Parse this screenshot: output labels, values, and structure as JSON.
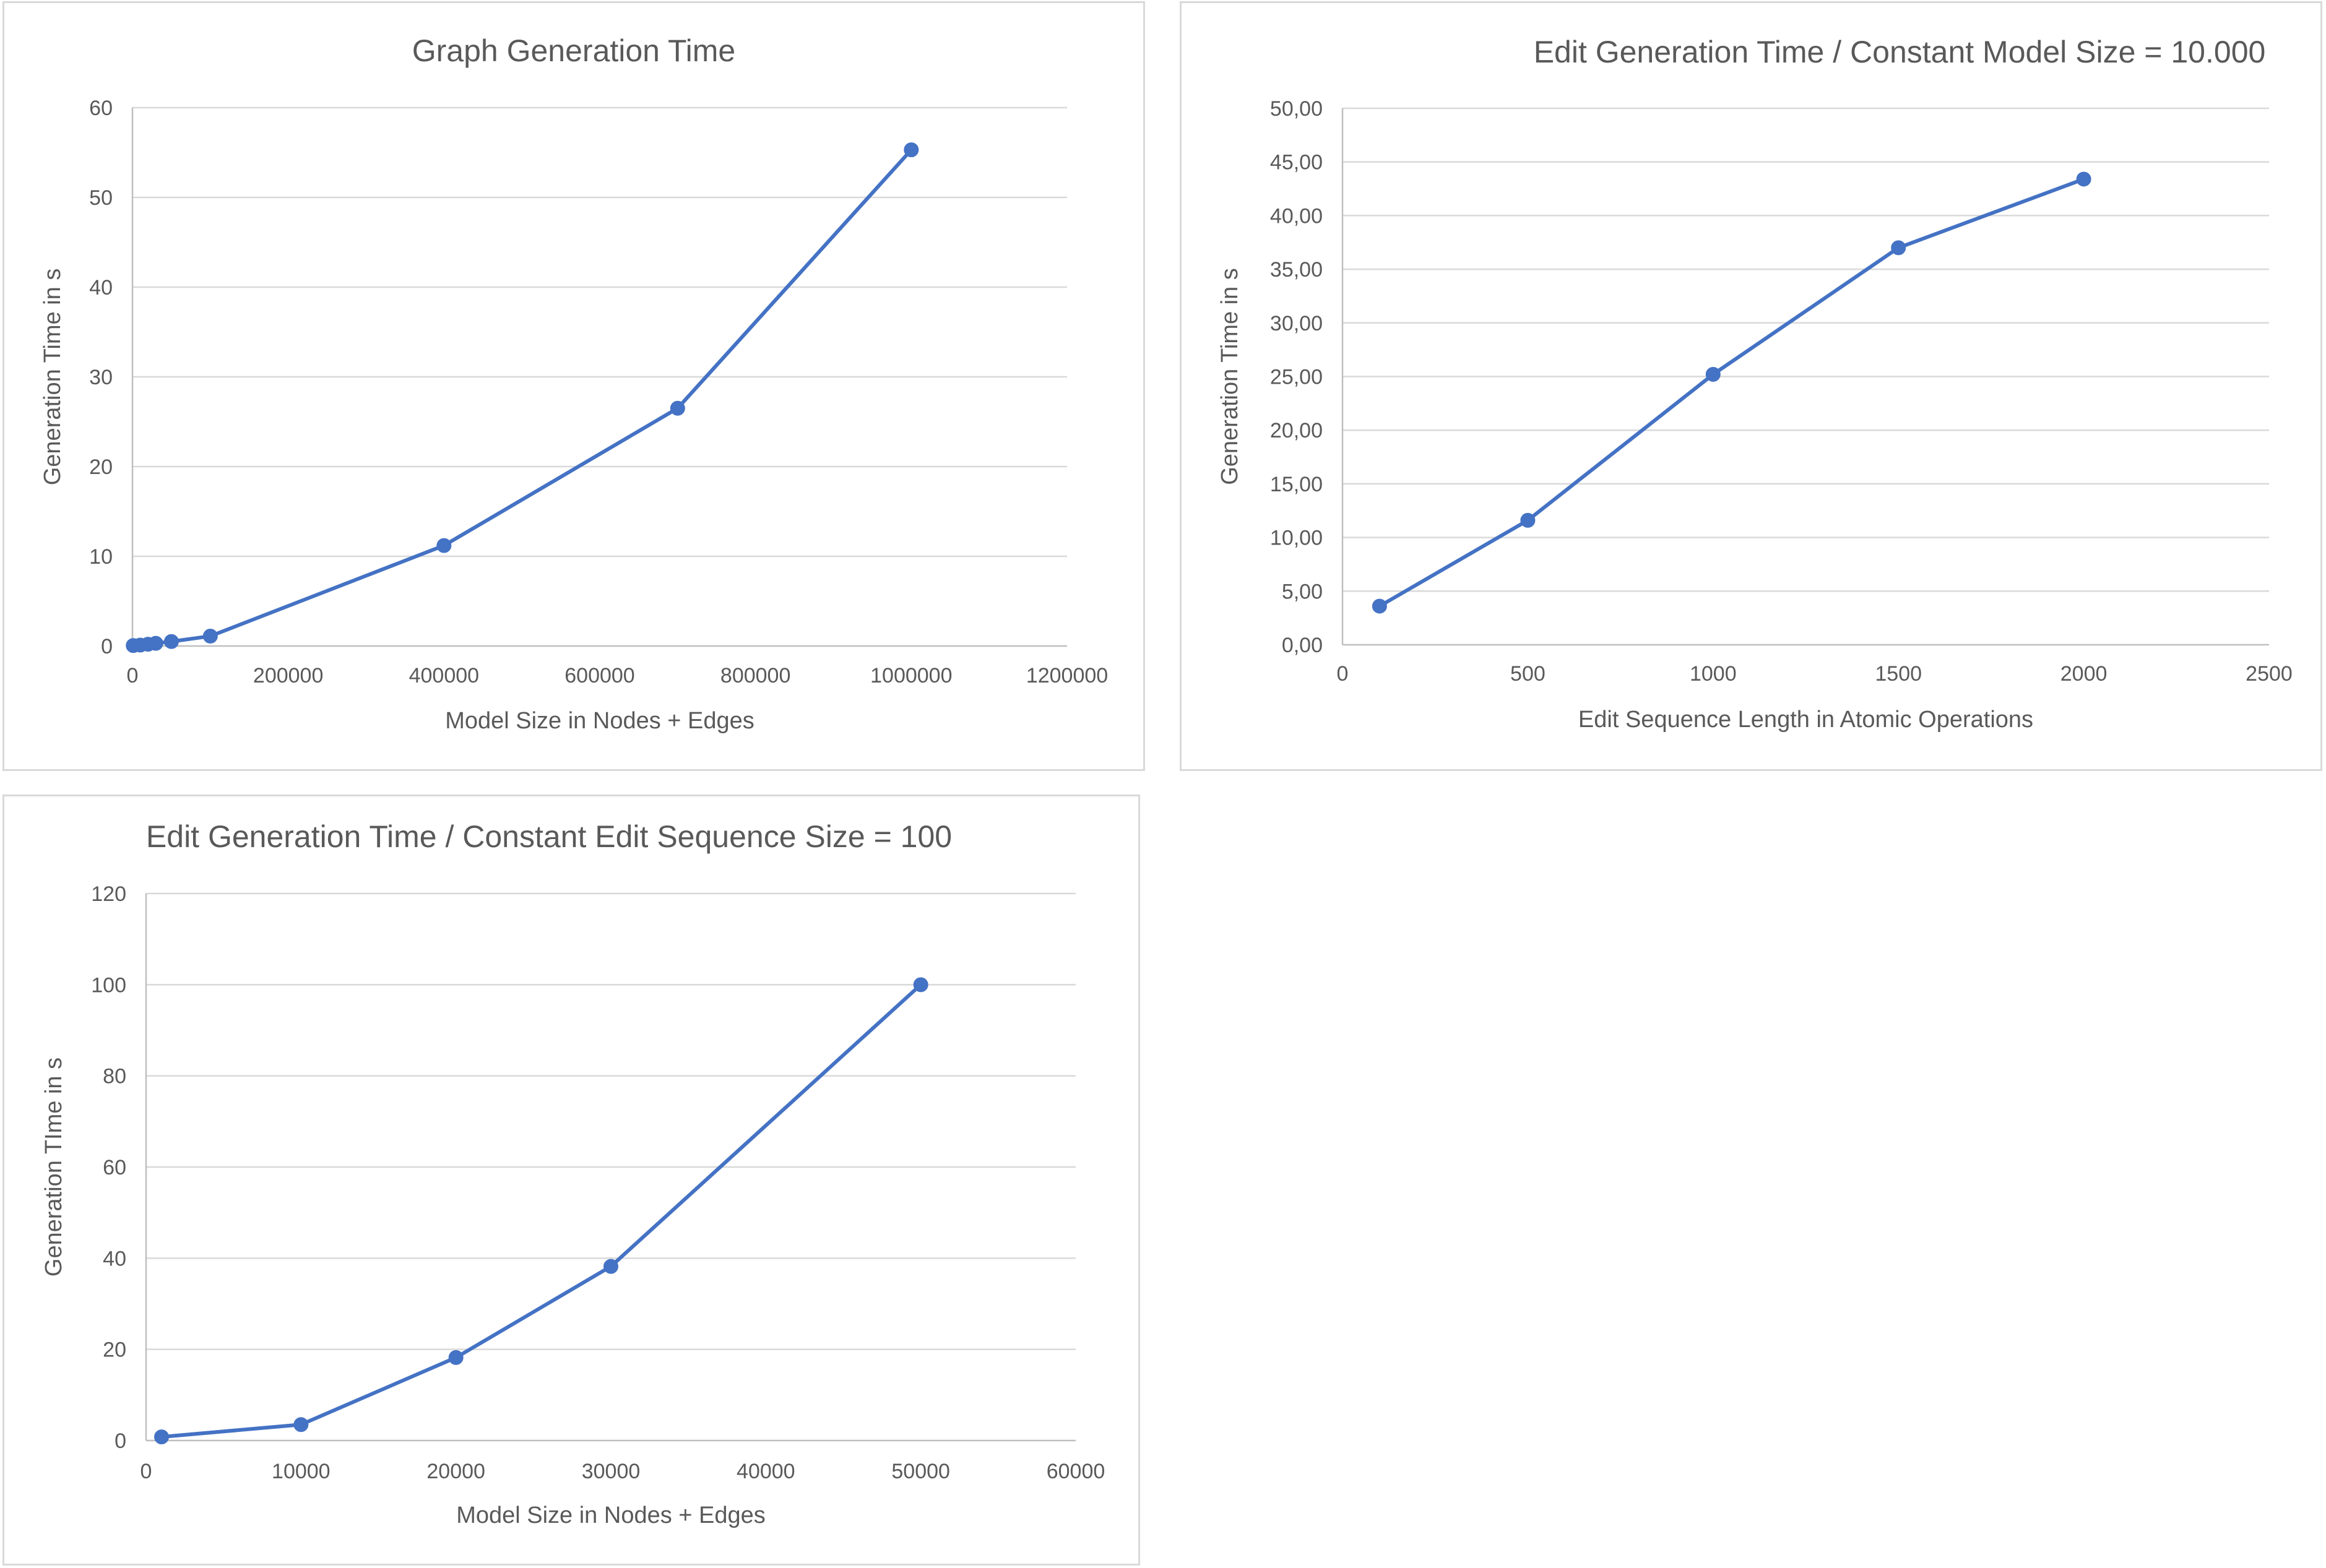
{
  "chart_data": [
    {
      "type": "scatter",
      "title": "Graph Generation Time",
      "xlabel": "Model Size in Nodes + Edges",
      "ylabel": "Generation Time in s",
      "xlim": [
        0,
        1200000
      ],
      "ylim": [
        0,
        60
      ],
      "x_ticks": [
        "0",
        "200000",
        "400000",
        "600000",
        "800000",
        "1000000",
        "1200000"
      ],
      "y_ticks": [
        "0",
        "10",
        "20",
        "30",
        "40",
        "50",
        "60"
      ],
      "grid": true,
      "color": "#4472c4",
      "series": [
        {
          "x": [
            1000,
            10000,
            20000,
            30000,
            50000,
            100000,
            400000,
            700000,
            1000000
          ],
          "y": [
            0.05,
            0.1,
            0.2,
            0.3,
            0.5,
            1.1,
            11.2,
            26.5,
            55.3
          ]
        }
      ]
    },
    {
      "type": "scatter",
      "title": "Edit Generation Time / Constant Model Size = 10.000",
      "xlabel": "Edit Sequence Length in Atomic Operations",
      "ylabel": "Generation Time in s",
      "xlim": [
        0,
        2500
      ],
      "ylim": [
        0,
        50
      ],
      "x_ticks": [
        "0",
        "500",
        "1000",
        "1500",
        "2000",
        "2500"
      ],
      "y_ticks": [
        "0,00",
        "5,00",
        "10,00",
        "15,00",
        "20,00",
        "25,00",
        "30,00",
        "35,00",
        "40,00",
        "45,00",
        "50,00"
      ],
      "grid": true,
      "color": "#4472c4",
      "series": [
        {
          "x": [
            100,
            500,
            1000,
            1500,
            2000
          ],
          "y": [
            3.6,
            11.6,
            25.2,
            37.0,
            43.4
          ]
        }
      ]
    },
    {
      "type": "scatter",
      "title": "Edit Generation Time / Constant Edit Sequence Size = 100",
      "xlabel": "Model Size in Nodes + Edges",
      "ylabel": "Generation TIme in s",
      "xlim": [
        0,
        60000
      ],
      "ylim": [
        0,
        120
      ],
      "x_ticks": [
        "0",
        "10000",
        "20000",
        "30000",
        "40000",
        "50000",
        "60000"
      ],
      "y_ticks": [
        "0",
        "20",
        "40",
        "60",
        "80",
        "100",
        "120"
      ],
      "grid": true,
      "color": "#4472c4",
      "series": [
        {
          "x": [
            1000,
            10000,
            20000,
            30000,
            50000
          ],
          "y": [
            0.8,
            3.5,
            18.2,
            38.2,
            100.0
          ]
        }
      ]
    }
  ]
}
